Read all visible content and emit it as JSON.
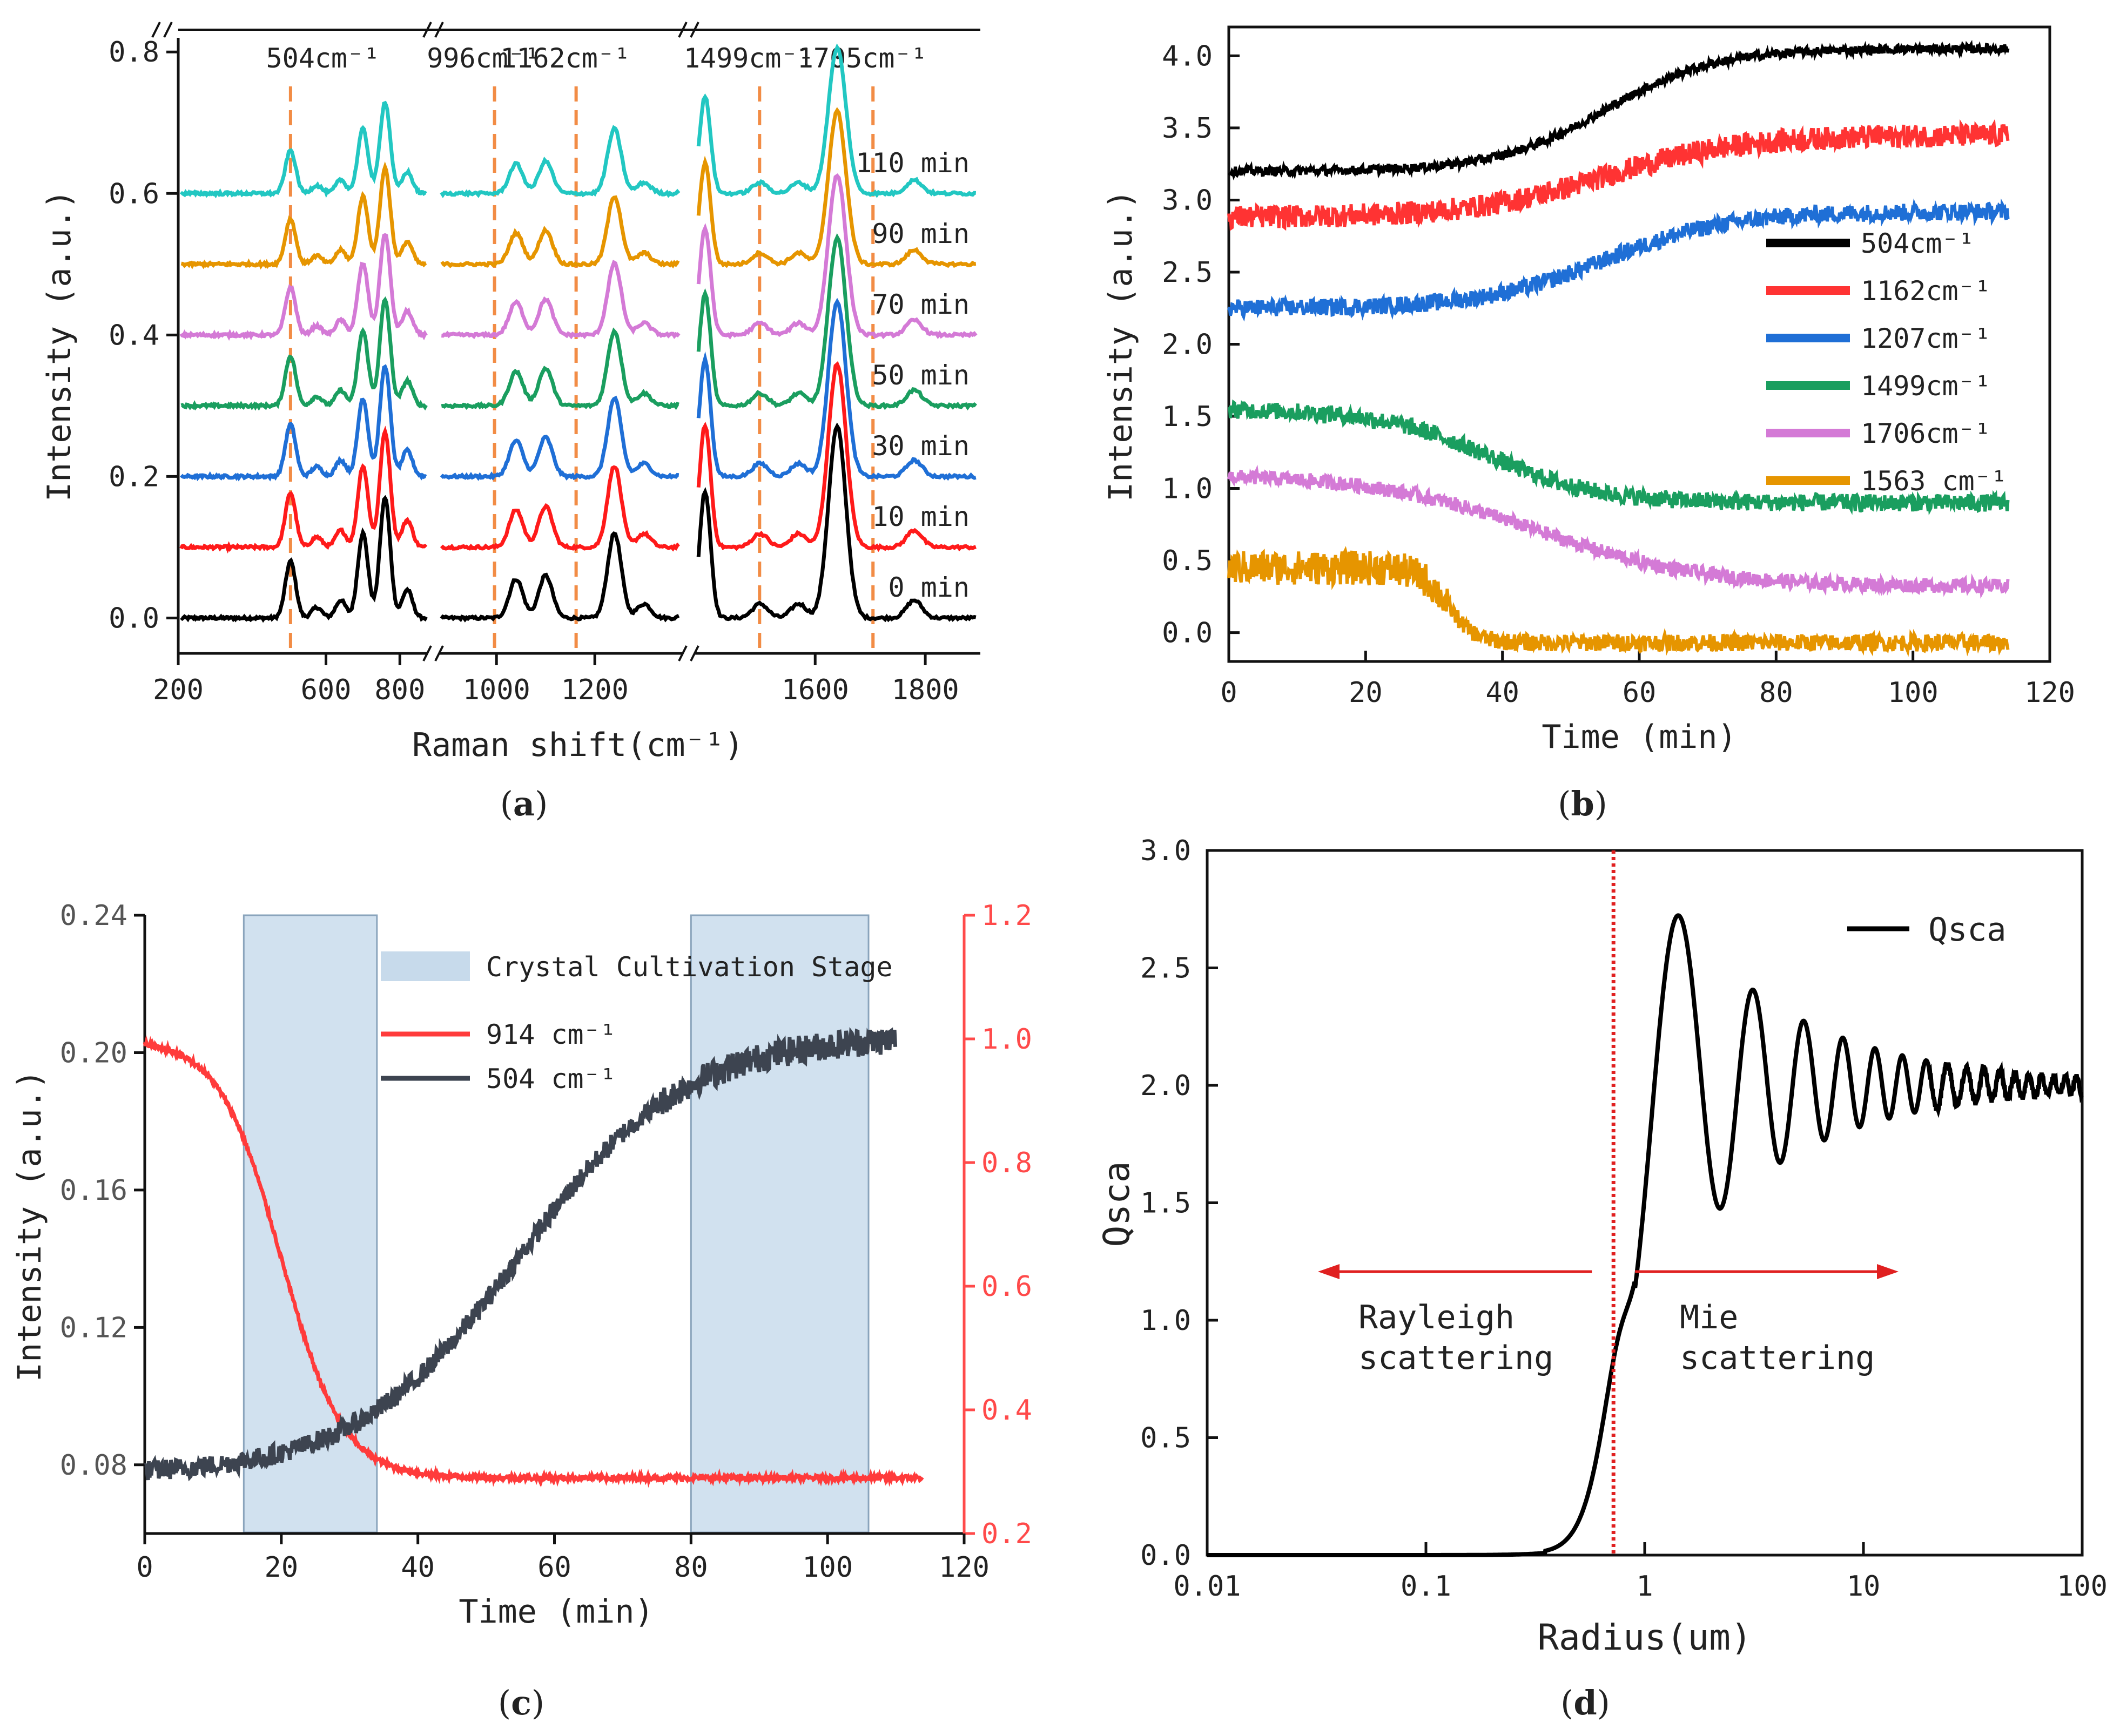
{
  "chart_data": [
    {
      "id": "a",
      "panel_label": "a",
      "type": "line",
      "title": "",
      "xlabel": "Raman shift(cm⁻¹)",
      "ylabel": "Intensity (a.u.)",
      "xlim": [
        200,
        1900
      ],
      "ylim": [
        -0.05,
        0.82
      ],
      "axis_breaks": [
        880,
        1380
      ],
      "x_ticks": [
        {
          "v": 200,
          "label": "200"
        },
        {
          "v": 600,
          "label": "600"
        },
        {
          "v": 800,
          "label": "800"
        },
        {
          "v": 1000,
          "label": "1000"
        },
        {
          "v": 1200,
          "label": "1200"
        },
        {
          "v": 1600,
          "label": "1600"
        },
        {
          "v": 1800,
          "label": "1800"
        }
      ],
      "y_ticks": [
        {
          "v": 0.0,
          "label": "0.0"
        },
        {
          "v": 0.2,
          "label": "0.2"
        },
        {
          "v": 0.4,
          "label": "0.4"
        },
        {
          "v": 0.6,
          "label": "0.6"
        },
        {
          "v": 0.8,
          "label": "0.8"
        }
      ],
      "peak_markers": [
        {
          "x": 504,
          "label": "504cm⁻¹"
        },
        {
          "x": 996,
          "label": "996cm⁻¹"
        },
        {
          "x": 1162,
          "label": "1162cm⁻¹"
        },
        {
          "x": 1499,
          "label": "1499cm⁻¹"
        },
        {
          "x": 1705,
          "label": "1705cm⁻¹"
        }
      ],
      "peaks": [
        {
          "x": 504,
          "h": 0.08
        },
        {
          "x": 575,
          "h": 0.015
        },
        {
          "x": 640,
          "h": 0.025
        },
        {
          "x": 700,
          "h": 0.12
        },
        {
          "x": 760,
          "h": 0.17
        },
        {
          "x": 820,
          "h": 0.04
        },
        {
          "x": 1040,
          "h": 0.055
        },
        {
          "x": 1100,
          "h": 0.06
        },
        {
          "x": 1240,
          "h": 0.12
        },
        {
          "x": 1300,
          "h": 0.02
        },
        {
          "x": 1400,
          "h": 0.18
        },
        {
          "x": 1500,
          "h": 0.02
        },
        {
          "x": 1570,
          "h": 0.02
        },
        {
          "x": 1640,
          "h": 0.27
        },
        {
          "x": 1780,
          "h": 0.025
        }
      ],
      "series": [
        {
          "name": "0 min",
          "offset": 0.0,
          "color": "#000000"
        },
        {
          "name": "10 min",
          "offset": 0.1,
          "color": "#ff1a1a"
        },
        {
          "name": "30 min",
          "offset": 0.2,
          "color": "#1f6fd6"
        },
        {
          "name": "50 min",
          "offset": 0.3,
          "color": "#1a9e5f"
        },
        {
          "name": "70 min",
          "offset": 0.4,
          "color": "#d47ad6"
        },
        {
          "name": "90 min",
          "offset": 0.5,
          "color": "#e69500"
        },
        {
          "name": "110 min",
          "offset": 0.6,
          "color": "#22c7c2"
        }
      ]
    },
    {
      "id": "b",
      "panel_label": "b",
      "type": "line",
      "title": "",
      "xlabel": "Time (min)",
      "ylabel": "Intensity (a.u.)",
      "xlim": [
        0,
        120
      ],
      "ylim": [
        -0.2,
        4.2
      ],
      "x_ticks": [
        {
          "v": 0,
          "label": "0"
        },
        {
          "v": 20,
          "label": "20"
        },
        {
          "v": 40,
          "label": "40"
        },
        {
          "v": 60,
          "label": "60"
        },
        {
          "v": 80,
          "label": "80"
        },
        {
          "v": 100,
          "label": "100"
        },
        {
          "v": 120,
          "label": "120"
        }
      ],
      "y_ticks": [
        {
          "v": 0.0,
          "label": "0.0"
        },
        {
          "v": 0.5,
          "label": "0.5"
        },
        {
          "v": 1.0,
          "label": "1.0"
        },
        {
          "v": 1.5,
          "label": "1.5"
        },
        {
          "v": 2.0,
          "label": "2.0"
        },
        {
          "v": 2.5,
          "label": "2.5"
        },
        {
          "v": 3.0,
          "label": "3.0"
        },
        {
          "v": 3.5,
          "label": "3.5"
        },
        {
          "v": 4.0,
          "label": "4.0"
        }
      ],
      "legend_position": "right",
      "series": [
        {
          "name": "504cm⁻¹",
          "color": "#000000",
          "start": 3.2,
          "end": 4.05,
          "mid": 55,
          "width": 8,
          "noise": 0.03
        },
        {
          "name": "1162cm⁻¹",
          "color": "#ff3333",
          "start": 2.88,
          "end": 3.45,
          "mid": 55,
          "width": 10,
          "noise": 0.08
        },
        {
          "name": "1207cm⁻¹",
          "color": "#1f6fd6",
          "start": 2.25,
          "end": 2.92,
          "mid": 55,
          "width": 9,
          "noise": 0.06
        },
        {
          "name": "1499cm⁻¹",
          "color": "#1a9e5f",
          "start": 1.55,
          "end": 0.9,
          "mid": 38,
          "width": 8,
          "noise": 0.06
        },
        {
          "name": "1706cm⁻¹",
          "color": "#d47ad6",
          "start": 1.1,
          "end": 0.32,
          "mid": 45,
          "width": 12,
          "noise": 0.05
        },
        {
          "name": "1563 cm⁻¹",
          "color": "#e69500",
          "start": 0.45,
          "end": -0.07,
          "mid": 32,
          "width": 2,
          "noise": 0.12
        }
      ]
    },
    {
      "id": "c",
      "panel_label": "c",
      "type": "line",
      "title": "",
      "xlabel": "Time (min)",
      "ylabel": "Intensity (a.u.)",
      "xlim": [
        0,
        120
      ],
      "ylim": [
        0.06,
        0.24
      ],
      "y2lim": [
        0.2,
        1.2
      ],
      "x_ticks": [
        {
          "v": 0,
          "label": "0"
        },
        {
          "v": 20,
          "label": "20"
        },
        {
          "v": 40,
          "label": "40"
        },
        {
          "v": 60,
          "label": "60"
        },
        {
          "v": 80,
          "label": "80"
        },
        {
          "v": 100,
          "label": "100"
        },
        {
          "v": 120,
          "label": "120"
        }
      ],
      "y_ticks": [
        {
          "v": 0.08,
          "label": "0.08"
        },
        {
          "v": 0.12,
          "label": "0.12"
        },
        {
          "v": 0.16,
          "label": "0.16"
        },
        {
          "v": 0.2,
          "label": "0.20"
        },
        {
          "v": 0.24,
          "label": "0.24"
        }
      ],
      "y2_ticks": [
        {
          "v": 0.2,
          "label": "0.2"
        },
        {
          "v": 0.4,
          "label": "0.4"
        },
        {
          "v": 0.6,
          "label": "0.6"
        },
        {
          "v": 0.8,
          "label": "0.8"
        },
        {
          "v": 1.0,
          "label": "1.0"
        },
        {
          "v": 1.2,
          "label": "1.2"
        }
      ],
      "shaded_regions": [
        {
          "x0": 14.5,
          "x1": 34
        },
        {
          "x0": 80,
          "x1": 106
        }
      ],
      "shaded_label": "Crystal Cultivation Stage",
      "shade_color": "#b9d1e6",
      "legend_position": "top-right",
      "series": [
        {
          "name": "914 cm⁻¹",
          "color": "#ff3b3b",
          "axis": "right",
          "start": 1.0,
          "end": 0.29,
          "mid": 20,
          "width": 4.5,
          "noise": 0.004,
          "x_end": 114
        },
        {
          "name": "504 cm⁻¹",
          "color": "#3d4450",
          "axis": "left",
          "start": 0.077,
          "end": 0.205,
          "mid": 55,
          "width": 12,
          "noise": 0.003,
          "x_end": 110
        }
      ]
    },
    {
      "id": "d",
      "panel_label": "d",
      "type": "line",
      "title": "",
      "xlabel": "Radius(um)",
      "ylabel": "Qsca",
      "xscale": "log",
      "xlim": [
        0.01,
        100
      ],
      "ylim": [
        0,
        3.0
      ],
      "x_ticks": [
        {
          "v": 0.01,
          "label": "0.01"
        },
        {
          "v": 0.1,
          "label": "0.1"
        },
        {
          "v": 1,
          "label": "1"
        },
        {
          "v": 10,
          "label": "10"
        },
        {
          "v": 100,
          "label": "100"
        }
      ],
      "y_ticks": [
        {
          "v": 0.0,
          "label": "0.0"
        },
        {
          "v": 0.5,
          "label": "0.5"
        },
        {
          "v": 1.0,
          "label": "1.0"
        },
        {
          "v": 1.5,
          "label": "1.5"
        },
        {
          "v": 2.0,
          "label": "2.0"
        },
        {
          "v": 2.5,
          "label": "2.5"
        },
        {
          "v": 3.0,
          "label": "3.0"
        }
      ],
      "legend_position": "top-right",
      "series": [
        {
          "name": "Qsca",
          "color": "#000000"
        }
      ],
      "divider_x": 0.72,
      "annotations": [
        {
          "text": "Rayleigh",
          "side": "left",
          "line": 1
        },
        {
          "text": "scattering",
          "side": "left",
          "line": 2
        },
        {
          "text": "Mie",
          "side": "right",
          "line": 1
        },
        {
          "text": "scattering",
          "side": "right",
          "line": 2
        }
      ]
    }
  ]
}
